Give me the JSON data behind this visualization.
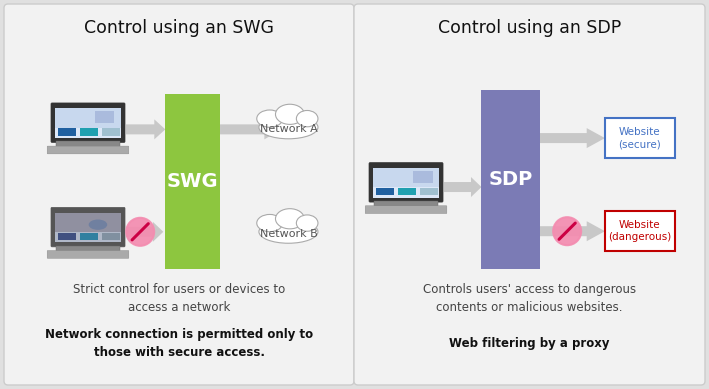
{
  "bg_color": "#e0e0e0",
  "panel_bg": "#f2f2f2",
  "panel_border": "#cccccc",
  "swg_color": "#8dc63f",
  "sdp_color": "#7b7bb5",
  "arrow_color": "#c8c8c8",
  "title_left": "Control using an SWG",
  "title_right": "Control using an SDP",
  "swg_label": "SWG",
  "sdp_label": "SDP",
  "network_a": "Network A",
  "network_b": "Network B",
  "website_secure": "Website\n(secure)",
  "website_dangerous": "Website\n(dangerous)",
  "desc_left_1": "Strict control for users or devices to\naccess a network",
  "desc_left_2": "Network connection is permitted only to\nthose with secure access.",
  "desc_right_1": "Controls users' access to dangerous\ncontents or malicious websites.",
  "desc_right_2": "Web filtering by a proxy",
  "secure_box_color": "#4472c4",
  "dangerous_box_color": "#c00000",
  "text_color": "#333333",
  "nosign_fill": "#f48cb0",
  "nosign_edge": "#f48cb0",
  "nosign_line": "#cc0044"
}
